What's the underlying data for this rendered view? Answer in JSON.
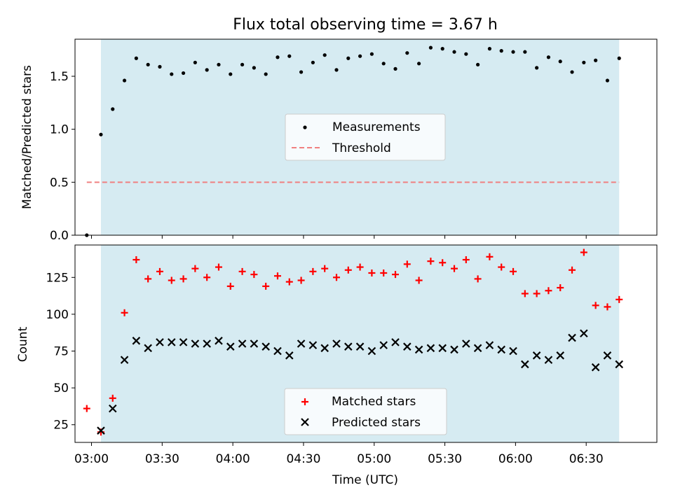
{
  "chart_data": [
    {
      "type": "scatter",
      "title": "Flux total observing time = 3.67 h",
      "xlabel": "",
      "ylabel": "Matched/Predicted stars",
      "xlim": [
        "02:53",
        "07:00"
      ],
      "ylim": [
        0,
        1.85
      ],
      "yticks": [
        0.0,
        0.5,
        1.0,
        1.5
      ],
      "ytick_labels": [
        "0.0",
        "0.5",
        "1.0",
        "1.5"
      ],
      "shaded_span": [
        "03:04",
        "06:44"
      ],
      "shade_color": "#add8e6",
      "grid": false,
      "legend_position": "center",
      "series": [
        {
          "name": "Measurements",
          "marker": "dot",
          "color": "#000000",
          "points": [
            [
              "02:58",
              0.0
            ],
            [
              "03:04",
              0.95
            ],
            [
              "03:09",
              1.19
            ],
            [
              "03:14",
              1.46
            ],
            [
              "03:19",
              1.67
            ],
            [
              "03:24",
              1.61
            ],
            [
              "03:29",
              1.59
            ],
            [
              "03:34",
              1.52
            ],
            [
              "03:39",
              1.53
            ],
            [
              "03:44",
              1.63
            ],
            [
              "03:49",
              1.56
            ],
            [
              "03:54",
              1.61
            ],
            [
              "03:59",
              1.52
            ],
            [
              "04:04",
              1.61
            ],
            [
              "04:09",
              1.58
            ],
            [
              "04:14",
              1.52
            ],
            [
              "04:19",
              1.68
            ],
            [
              "04:24",
              1.69
            ],
            [
              "04:29",
              1.54
            ],
            [
              "04:34",
              1.63
            ],
            [
              "04:39",
              1.7
            ],
            [
              "04:44",
              1.56
            ],
            [
              "04:49",
              1.67
            ],
            [
              "04:54",
              1.69
            ],
            [
              "04:59",
              1.71
            ],
            [
              "05:04",
              1.62
            ],
            [
              "05:09",
              1.57
            ],
            [
              "05:14",
              1.72
            ],
            [
              "05:19",
              1.62
            ],
            [
              "05:24",
              1.77
            ],
            [
              "05:29",
              1.76
            ],
            [
              "05:34",
              1.73
            ],
            [
              "05:39",
              1.71
            ],
            [
              "05:44",
              1.61
            ],
            [
              "05:49",
              1.76
            ],
            [
              "05:54",
              1.74
            ],
            [
              "05:59",
              1.73
            ],
            [
              "06:04",
              1.73
            ],
            [
              "06:09",
              1.58
            ],
            [
              "06:14",
              1.68
            ],
            [
              "06:19",
              1.64
            ],
            [
              "06:24",
              1.54
            ],
            [
              "06:29",
              1.63
            ],
            [
              "06:34",
              1.65
            ],
            [
              "06:39",
              1.46
            ],
            [
              "06:44",
              1.67
            ]
          ]
        },
        {
          "name": "Threshold",
          "line_style": "dashed",
          "color": "#f08080",
          "points": [
            [
              "02:58",
              0.5
            ],
            [
              "06:44",
              0.5
            ]
          ]
        }
      ]
    },
    {
      "type": "scatter",
      "title": "",
      "xlabel": "Time (UTC)",
      "ylabel": "Count",
      "xlim": [
        "02:53",
        "07:00"
      ],
      "ylim": [
        13,
        147
      ],
      "yticks": [
        25,
        50,
        75,
        100,
        125
      ],
      "ytick_labels": [
        "25",
        "50",
        "75",
        "100",
        "125"
      ],
      "xticks": [
        "03:00",
        "03:30",
        "04:00",
        "04:30",
        "05:00",
        "05:30",
        "06:00",
        "06:30"
      ],
      "xtick_labels": [
        "03:00",
        "03:30",
        "04:00",
        "04:30",
        "05:00",
        "05:30",
        "06:00",
        "06:30"
      ],
      "shaded_span": [
        "03:04",
        "06:44"
      ],
      "shade_color": "#add8e6",
      "grid": false,
      "legend_position": "lower center",
      "series": [
        {
          "name": "Matched stars",
          "marker": "plus",
          "color": "#ff0000",
          "points": [
            [
              "02:58",
              36
            ],
            [
              "03:04",
              20
            ],
            [
              "03:09",
              43
            ],
            [
              "03:14",
              101
            ],
            [
              "03:19",
              137
            ],
            [
              "03:24",
              124
            ],
            [
              "03:29",
              129
            ],
            [
              "03:34",
              123
            ],
            [
              "03:39",
              124
            ],
            [
              "03:44",
              131
            ],
            [
              "03:49",
              125
            ],
            [
              "03:54",
              132
            ],
            [
              "03:59",
              119
            ],
            [
              "04:04",
              129
            ],
            [
              "04:09",
              127
            ],
            [
              "04:14",
              119
            ],
            [
              "04:19",
              126
            ],
            [
              "04:24",
              122
            ],
            [
              "04:29",
              123
            ],
            [
              "04:34",
              129
            ],
            [
              "04:39",
              131
            ],
            [
              "04:44",
              125
            ],
            [
              "04:49",
              130
            ],
            [
              "04:54",
              132
            ],
            [
              "04:59",
              128
            ],
            [
              "05:04",
              128
            ],
            [
              "05:09",
              127
            ],
            [
              "05:14",
              134
            ],
            [
              "05:19",
              123
            ],
            [
              "05:24",
              136
            ],
            [
              "05:29",
              135
            ],
            [
              "05:34",
              131
            ],
            [
              "05:39",
              137
            ],
            [
              "05:44",
              124
            ],
            [
              "05:49",
              139
            ],
            [
              "05:54",
              132
            ],
            [
              "05:59",
              129
            ],
            [
              "06:04",
              114
            ],
            [
              "06:09",
              114
            ],
            [
              "06:14",
              116
            ],
            [
              "06:19",
              118
            ],
            [
              "06:24",
              130
            ],
            [
              "06:29",
              142
            ],
            [
              "06:34",
              106
            ],
            [
              "06:39",
              105
            ],
            [
              "06:44",
              110
            ]
          ]
        },
        {
          "name": "Predicted stars",
          "marker": "x",
          "color": "#000000",
          "points": [
            [
              "03:04",
              21
            ],
            [
              "03:09",
              36
            ],
            [
              "03:14",
              69
            ],
            [
              "03:19",
              82
            ],
            [
              "03:24",
              77
            ],
            [
              "03:29",
              81
            ],
            [
              "03:34",
              81
            ],
            [
              "03:39",
              81
            ],
            [
              "03:44",
              80
            ],
            [
              "03:49",
              80
            ],
            [
              "03:54",
              82
            ],
            [
              "03:59",
              78
            ],
            [
              "04:04",
              80
            ],
            [
              "04:09",
              80
            ],
            [
              "04:14",
              78
            ],
            [
              "04:19",
              75
            ],
            [
              "04:24",
              72
            ],
            [
              "04:29",
              80
            ],
            [
              "04:34",
              79
            ],
            [
              "04:39",
              77
            ],
            [
              "04:44",
              80
            ],
            [
              "04:49",
              78
            ],
            [
              "04:54",
              78
            ],
            [
              "04:59",
              75
            ],
            [
              "05:04",
              79
            ],
            [
              "05:09",
              81
            ],
            [
              "05:14",
              78
            ],
            [
              "05:19",
              76
            ],
            [
              "05:24",
              77
            ],
            [
              "05:29",
              77
            ],
            [
              "05:34",
              76
            ],
            [
              "05:39",
              80
            ],
            [
              "05:44",
              77
            ],
            [
              "05:49",
              79
            ],
            [
              "05:54",
              76
            ],
            [
              "05:59",
              75
            ],
            [
              "06:04",
              66
            ],
            [
              "06:09",
              72
            ],
            [
              "06:14",
              69
            ],
            [
              "06:19",
              72
            ],
            [
              "06:24",
              84
            ],
            [
              "06:29",
              87
            ],
            [
              "06:34",
              64
            ],
            [
              "06:39",
              72
            ],
            [
              "06:44",
              66
            ]
          ]
        }
      ]
    }
  ]
}
